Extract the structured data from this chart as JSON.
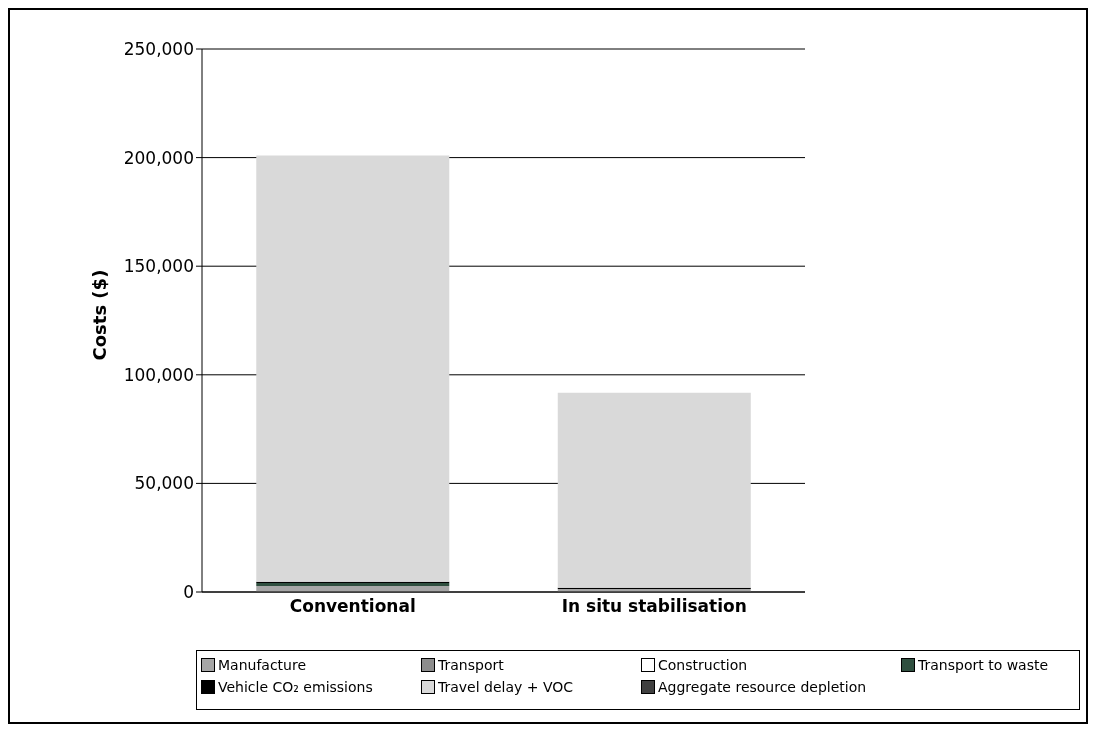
{
  "chart_data": {
    "type": "bar",
    "stacked": true,
    "ylabel": "Costs ($)",
    "categories": [
      "Conventional",
      "In situ stabilisation"
    ],
    "series": [
      {
        "name": "Manufacture",
        "color": "#a6a6a6",
        "values": [
          2800,
          1400
        ]
      },
      {
        "name": "Transport",
        "color": "#8c8c8c",
        "values": [
          0,
          0
        ]
      },
      {
        "name": "Construction",
        "color": "#ffffff",
        "values": [
          0,
          0
        ]
      },
      {
        "name": "Transport to waste",
        "color": "#2f4f3f",
        "values": [
          1400,
          0
        ]
      },
      {
        "name": "Vehicle CO₂ emissions",
        "color": "#000000",
        "values": [
          500,
          500
        ]
      },
      {
        "name": "Travel delay + VOC",
        "color": "#d9d9d9",
        "values": [
          196300,
          89800
        ]
      },
      {
        "name": "Aggregate resource depletion",
        "color": "#404040",
        "values": [
          0,
          0
        ]
      }
    ],
    "ylim": [
      0,
      250000
    ],
    "yticks": [
      {
        "value": 0,
        "label": "0"
      },
      {
        "value": 50000,
        "label": "50,000"
      },
      {
        "value": 100000,
        "label": "100,000"
      },
      {
        "value": 150000,
        "label": "150,000"
      },
      {
        "value": 200000,
        "label": "200,000"
      },
      {
        "value": 250000,
        "label": "250,000"
      }
    ],
    "grid": "y",
    "legend": "bottom"
  }
}
